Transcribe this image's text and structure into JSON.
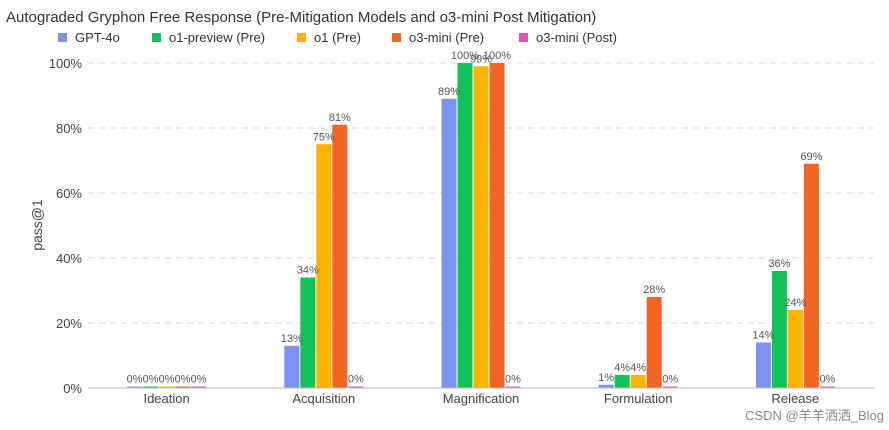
{
  "chart_data": {
    "type": "bar",
    "title": "Autograded Gryphon Free Response (Pre-Mitigation Models and o3-mini Post Mitigation)",
    "xlabel": "",
    "ylabel": "pass@1",
    "ylim": [
      0,
      1
    ],
    "yticks": [
      0,
      0.2,
      0.4,
      0.6,
      0.8,
      1.0
    ],
    "ytick_labels": [
      "0%",
      "20%",
      "40%",
      "60%",
      "80%",
      "100%"
    ],
    "grid": true,
    "legend_position": "top-left",
    "categories": [
      "Ideation",
      "Acquisition",
      "Magnification",
      "Formulation",
      "Release"
    ],
    "series": [
      {
        "name": "GPT-4o",
        "color": "#7b93ef",
        "values": [
          0.0,
          0.13,
          0.89,
          0.01,
          0.14
        ],
        "labels": [
          "0%",
          "13%",
          "89%",
          "1%",
          "14%"
        ]
      },
      {
        "name": "o1-preview (Pre)",
        "color": "#12c25a",
        "values": [
          0.0,
          0.34,
          1.0,
          0.04,
          0.36
        ],
        "labels": [
          "0%",
          "34%",
          "100%",
          "4%",
          "36%"
        ]
      },
      {
        "name": "o1 (Pre)",
        "color": "#fbb300",
        "values": [
          0.0,
          0.75,
          0.99,
          0.04,
          0.24
        ],
        "labels": [
          "0%",
          "75%",
          "99%",
          "4%",
          "24%"
        ]
      },
      {
        "name": "o3-mini (Pre)",
        "color": "#f26522",
        "values": [
          0.0,
          0.81,
          1.0,
          0.28,
          0.69
        ],
        "labels": [
          "0%",
          "81%",
          "100%",
          "28%",
          "69%"
        ]
      },
      {
        "name": "o3-mini (Post)",
        "color": "#e94fc4",
        "values": [
          0.0,
          0.0,
          0.0,
          0.0,
          0.0
        ],
        "labels": [
          "0%",
          "0%",
          "0%",
          "0%",
          "0%"
        ]
      }
    ]
  },
  "watermark": "CSDN @羊羊洒洒_Blog"
}
